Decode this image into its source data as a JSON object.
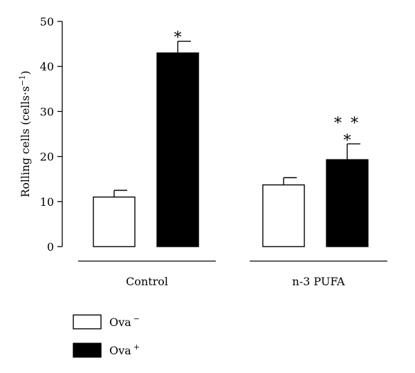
{
  "chart_data": {
    "type": "bar",
    "ylabel": "Rolling cells (cells·s",
    "ylabel_sup": "−1",
    "ylabel_close": ")",
    "ylim": [
      0,
      50
    ],
    "yticks": [
      "0",
      "10",
      "20",
      "30",
      "40",
      "50"
    ],
    "groups": [
      {
        "label": "Control"
      },
      {
        "label": "n-3 PUFA"
      }
    ],
    "series": [
      {
        "name": "Ova",
        "sup": "−",
        "color": "#ffffff",
        "values": [
          11.0,
          13.7
        ],
        "errors": [
          1.5,
          1.6
        ],
        "annotations": [
          "",
          ""
        ]
      },
      {
        "name": "Ova",
        "sup": "+",
        "color": "#000000",
        "values": [
          43.0,
          19.3
        ],
        "errors": [
          2.6,
          3.5
        ],
        "annotations": [
          "*",
          "* *\n*"
        ]
      }
    ],
    "legend_position": "bottom-left",
    "grid": false
  }
}
